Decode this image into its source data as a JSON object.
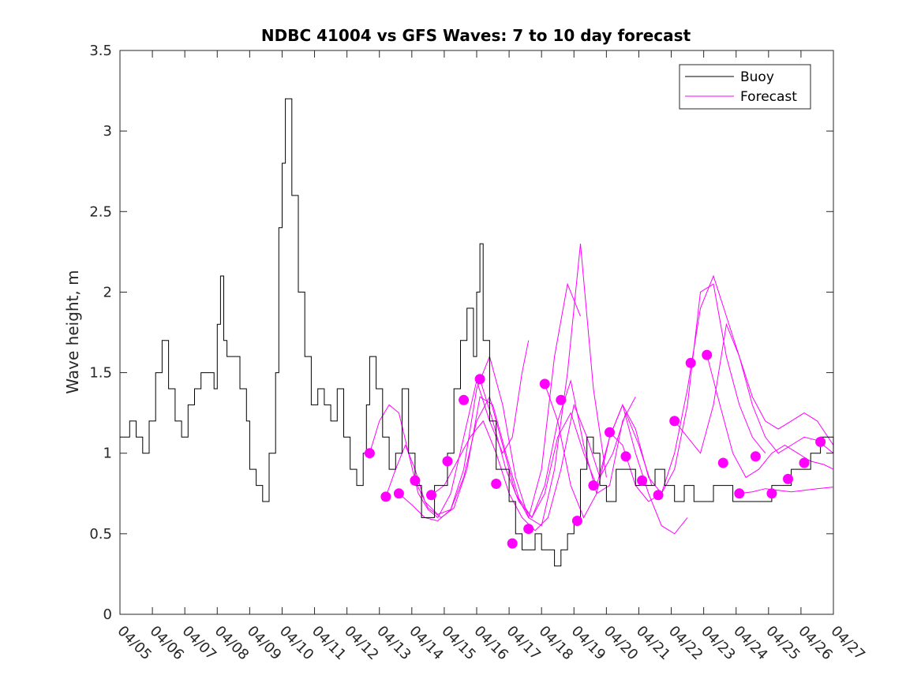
{
  "chart_data": {
    "type": "line",
    "title": "NDBC 41004 vs GFS Waves: 7 to 10 day forecast",
    "xlabel": "",
    "ylabel": "Wave height, m",
    "ylim": [
      0,
      3.5
    ],
    "y_ticks": [
      "0",
      "0.5",
      "1",
      "1.5",
      "2",
      "2.5",
      "3",
      "3.5"
    ],
    "x_range_days": [
      "04/05",
      "04/27"
    ],
    "x_tick_labels": [
      "04/05",
      "04/06",
      "04/07",
      "04/08",
      "04/09",
      "04/10",
      "04/11",
      "04/12",
      "04/13",
      "04/14",
      "04/15",
      "04/16",
      "04/17",
      "04/18",
      "04/19",
      "04/20",
      "04/21",
      "04/22",
      "04/23",
      "04/24",
      "04/25",
      "04/26",
      "04/27"
    ],
    "legend": {
      "position": "top-right",
      "entries": [
        "Buoy",
        "Forecast"
      ]
    },
    "colors": {
      "buoy": "#000000",
      "forecast": "#ff00ff"
    },
    "series": [
      {
        "name": "Buoy",
        "x_day_of_april": [
          5.0,
          5.3,
          5.5,
          5.7,
          5.9,
          6.1,
          6.3,
          6.5,
          6.7,
          6.9,
          7.1,
          7.3,
          7.5,
          7.7,
          7.9,
          8.0,
          8.1,
          8.2,
          8.3,
          8.5,
          8.7,
          8.9,
          9.0,
          9.2,
          9.4,
          9.6,
          9.8,
          9.9,
          10.0,
          10.1,
          10.3,
          10.5,
          10.7,
          10.9,
          11.1,
          11.3,
          11.5,
          11.7,
          11.9,
          12.1,
          12.3,
          12.5,
          12.6,
          12.7,
          12.9,
          13.1,
          13.3,
          13.5,
          13.7,
          13.9,
          14.1,
          14.3,
          14.5,
          14.7,
          14.9,
          15.1,
          15.3,
          15.5,
          15.7,
          15.9,
          16.0,
          16.1,
          16.2,
          16.4,
          16.6,
          16.8,
          17.0,
          17.2,
          17.4,
          17.6,
          17.8,
          18.0,
          18.2,
          18.4,
          18.6,
          18.8,
          19.0,
          19.2,
          19.4,
          19.6,
          19.8,
          20.0,
          20.3,
          20.6,
          20.9,
          21.2,
          21.5,
          21.8,
          22.1,
          22.4,
          22.7,
          23.0,
          23.3,
          23.6,
          23.9,
          24.2,
          24.5,
          24.8,
          25.1,
          25.4,
          25.7,
          26.0,
          26.3,
          26.6,
          27.0
        ],
        "y": [
          1.1,
          1.2,
          1.1,
          1.0,
          1.2,
          1.5,
          1.7,
          1.4,
          1.2,
          1.1,
          1.3,
          1.4,
          1.5,
          1.5,
          1.4,
          1.8,
          2.1,
          1.7,
          1.6,
          1.6,
          1.4,
          1.2,
          0.9,
          0.8,
          0.7,
          1.0,
          1.5,
          2.4,
          2.8,
          3.2,
          2.6,
          2.0,
          1.6,
          1.3,
          1.4,
          1.3,
          1.2,
          1.4,
          1.1,
          0.9,
          0.8,
          1.0,
          1.3,
          1.6,
          1.4,
          1.1,
          0.9,
          1.0,
          1.4,
          1.0,
          0.8,
          0.6,
          0.6,
          0.8,
          0.8,
          1.0,
          1.4,
          1.7,
          1.9,
          1.6,
          2.0,
          2.3,
          1.7,
          1.2,
          0.9,
          0.9,
          0.7,
          0.5,
          0.4,
          0.4,
          0.5,
          0.4,
          0.4,
          0.3,
          0.4,
          0.5,
          0.6,
          0.9,
          1.1,
          1.0,
          0.8,
          0.7,
          0.9,
          0.9,
          0.8,
          0.8,
          0.9,
          0.8,
          0.7,
          0.8,
          0.7,
          0.7,
          0.8,
          0.8,
          0.7,
          0.7,
          0.7,
          0.7,
          0.8,
          0.8,
          0.9,
          0.9,
          1.0,
          1.1,
          1.0
        ]
      },
      {
        "name": "Forecast",
        "points_x_day": [
          12.7,
          13.2,
          13.6,
          14.1,
          14.6,
          15.1,
          15.6,
          16.1,
          16.6,
          17.1,
          17.6,
          18.1,
          18.6,
          19.1,
          19.6,
          20.1,
          20.6,
          21.1,
          21.6,
          22.1,
          22.6,
          23.1,
          23.6,
          24.1,
          24.6,
          25.1,
          25.6,
          26.1,
          26.6
        ],
        "points_y": [
          1.0,
          0.73,
          0.75,
          0.83,
          0.74,
          0.95,
          1.33,
          1.46,
          0.81,
          0.44,
          0.53,
          1.43,
          1.33,
          0.58,
          0.8,
          1.13,
          0.98,
          0.83,
          0.74,
          1.2,
          1.56,
          1.61,
          0.94,
          0.75,
          0.98,
          0.75,
          0.84,
          0.94,
          1.07
        ],
        "traces": [
          {
            "x": [
              12.7,
              13.0,
              13.3,
              13.6,
              13.9,
              14.2,
              14.5,
              14.8,
              15.2,
              15.6,
              16.0,
              16.4,
              16.8,
              17.1,
              17.4,
              17.6
            ],
            "y": [
              1.0,
              1.2,
              1.3,
              1.25,
              1.0,
              0.75,
              0.65,
              0.6,
              0.75,
              1.1,
              1.45,
              1.2,
              1.0,
              1.1,
              1.5,
              1.7
            ]
          },
          {
            "x": [
              13.2,
              13.5,
              13.8,
              14.1,
              14.4,
              14.8,
              15.2,
              15.6,
              16.0,
              16.4,
              16.8,
              17.2,
              17.6,
              18.0,
              18.4,
              18.8,
              19.2
            ],
            "y": [
              0.73,
              0.9,
              1.05,
              0.9,
              0.7,
              0.62,
              0.65,
              0.85,
              1.2,
              1.35,
              1.05,
              0.75,
              0.6,
              0.9,
              1.6,
              2.05,
              1.85
            ]
          },
          {
            "x": [
              13.6,
              14.0,
              14.4,
              14.8,
              15.2,
              15.6,
              16.0,
              16.4,
              16.8,
              17.2,
              17.6,
              18.0,
              18.4,
              18.8,
              19.2,
              19.6,
              20.0
            ],
            "y": [
              0.75,
              0.68,
              0.6,
              0.58,
              0.65,
              0.9,
              1.4,
              1.6,
              1.3,
              0.85,
              0.6,
              0.55,
              0.9,
              1.5,
              2.3,
              1.4,
              0.85
            ]
          },
          {
            "x": [
              14.1,
              14.5,
              14.9,
              15.3,
              15.7,
              16.1,
              16.5,
              16.9,
              17.3,
              17.7,
              18.1,
              18.5,
              18.9,
              19.3,
              19.7,
              20.1,
              20.5,
              20.9
            ],
            "y": [
              0.83,
              0.66,
              0.6,
              0.66,
              0.9,
              1.35,
              1.3,
              1.0,
              0.72,
              0.6,
              0.8,
              1.2,
              1.45,
              1.05,
              0.75,
              0.8,
              1.2,
              1.35
            ]
          },
          {
            "x": [
              14.6,
              15.0,
              15.4,
              15.8,
              16.2,
              16.6,
              17.0,
              17.4,
              17.8,
              18.2,
              18.6,
              19.0,
              19.4,
              19.8,
              20.2,
              20.6,
              21.0,
              21.4
            ],
            "y": [
              0.74,
              0.8,
              0.95,
              1.1,
              1.2,
              1.0,
              0.75,
              0.6,
              0.52,
              0.6,
              0.9,
              1.3,
              1.1,
              0.85,
              1.0,
              1.25,
              1.05,
              0.8
            ]
          },
          {
            "x": [
              16.1,
              16.5,
              16.9,
              17.3,
              17.7,
              18.1,
              18.5,
              18.9,
              19.3,
              19.7,
              20.1,
              20.5,
              20.9,
              21.3,
              21.7,
              22.1,
              22.5
            ],
            "y": [
              1.46,
              1.2,
              0.9,
              0.7,
              0.6,
              0.75,
              1.1,
              1.25,
              1.0,
              0.8,
              1.1,
              1.3,
              1.0,
              0.75,
              0.55,
              0.5,
              0.6
            ]
          },
          {
            "x": [
              18.1,
              18.5,
              18.9,
              19.3,
              19.7,
              20.1,
              20.5,
              20.9,
              21.3,
              21.7,
              22.1,
              22.5,
              22.9,
              23.3,
              23.7,
              24.1,
              24.5,
              24.9
            ],
            "y": [
              1.43,
              1.2,
              0.8,
              0.6,
              0.75,
              1.1,
              1.3,
              1.15,
              0.85,
              0.75,
              0.9,
              1.3,
              2.0,
              2.05,
              1.6,
              1.3,
              1.1,
              1.0
            ]
          },
          {
            "x": [
              20.1,
              20.5,
              20.9,
              21.3,
              21.7,
              22.1,
              22.5,
              22.9,
              23.3,
              23.7,
              24.1,
              24.5,
              24.9,
              25.3,
              25.7,
              26.1,
              26.5,
              27.0
            ],
            "y": [
              1.13,
              1.05,
              0.8,
              0.7,
              0.75,
              1.0,
              1.4,
              1.9,
              2.1,
              1.85,
              1.6,
              1.35,
              1.2,
              1.15,
              1.2,
              1.25,
              1.2,
              1.05
            ]
          },
          {
            "x": [
              22.1,
              22.5,
              22.9,
              23.3,
              23.7,
              24.1,
              24.5,
              24.9,
              25.3,
              25.7,
              26.1,
              26.5,
              27.0
            ],
            "y": [
              1.2,
              1.1,
              1.0,
              1.3,
              1.8,
              1.6,
              1.3,
              1.1,
              1.0,
              1.05,
              1.1,
              1.08,
              1.0
            ]
          },
          {
            "x": [
              23.1,
              23.5,
              23.9,
              24.3,
              24.7,
              25.1,
              25.5,
              25.9,
              26.3,
              26.7,
              27.0
            ],
            "y": [
              1.61,
              1.3,
              1.0,
              0.85,
              0.9,
              1.0,
              1.05,
              1.0,
              0.95,
              0.93,
              0.9
            ]
          },
          {
            "x": [
              24.1,
              24.5,
              24.9,
              25.3,
              25.7,
              26.1,
              26.5,
              27.0
            ],
            "y": [
              0.75,
              0.76,
              0.78,
              0.77,
              0.76,
              0.77,
              0.78,
              0.79
            ]
          }
        ]
      }
    ]
  }
}
